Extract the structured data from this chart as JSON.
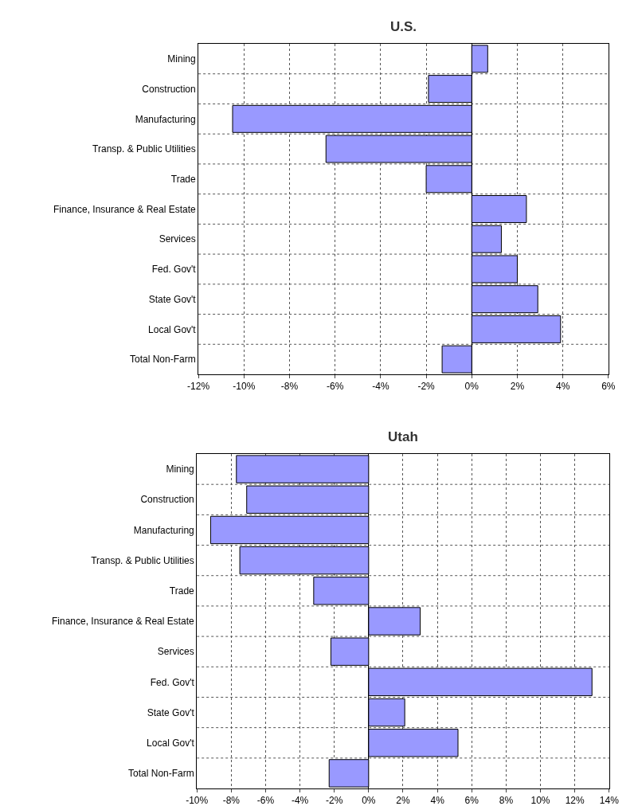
{
  "chart_data": [
    {
      "type": "bar",
      "orientation": "horizontal",
      "title": "U.S.",
      "color": "#9999ff",
      "grid": true,
      "categories": [
        "Mining",
        "Construction",
        "Manufacturing",
        "Transp. & Public Utilities",
        "Trade",
        "Finance, Insurance & Real Estate",
        "Services",
        "Fed. Gov't",
        "State Gov't",
        "Local Gov't",
        "Total Non-Farm"
      ],
      "values": [
        0.7,
        -1.9,
        -10.5,
        -6.4,
        -2.0,
        2.4,
        1.3,
        2.0,
        2.9,
        3.9,
        -1.3
      ],
      "xlim": [
        -12,
        6
      ],
      "xticks": [
        {
          "value": -12,
          "label": "-12%"
        },
        {
          "value": -10,
          "label": "-10%"
        },
        {
          "value": -8,
          "label": "-8%"
        },
        {
          "value": -6,
          "label": "-6%"
        },
        {
          "value": -4,
          "label": "-4%"
        },
        {
          "value": -2,
          "label": "-2%"
        },
        {
          "value": 0,
          "label": "0%"
        },
        {
          "value": 2,
          "label": "2%"
        },
        {
          "value": 4,
          "label": "4%"
        },
        {
          "value": 6,
          "label": "6%"
        }
      ]
    },
    {
      "type": "bar",
      "orientation": "horizontal",
      "title": "Utah",
      "color": "#9999ff",
      "grid": true,
      "categories": [
        "Mining",
        "Construction",
        "Manufacturing",
        "Transp. & Public Utilities",
        "Trade",
        "Finance, Insurance & Real Estate",
        "Services",
        "Fed. Gov't",
        "State Gov't",
        "Local Gov't",
        "Total Non-Farm"
      ],
      "values": [
        -7.7,
        -7.1,
        -9.2,
        -7.5,
        -3.2,
        3.0,
        -2.2,
        13.0,
        2.1,
        5.2,
        -2.3
      ],
      "xlim": [
        -10,
        14
      ],
      "xticks": [
        {
          "value": -10,
          "label": "-10%"
        },
        {
          "value": -8,
          "label": "-8%"
        },
        {
          "value": -6,
          "label": "-6%"
        },
        {
          "value": -4,
          "label": "-4%"
        },
        {
          "value": -2,
          "label": "-2%"
        },
        {
          "value": 0,
          "label": "0%"
        },
        {
          "value": 2,
          "label": "2%"
        },
        {
          "value": 4,
          "label": "4%"
        },
        {
          "value": 6,
          "label": "6%"
        },
        {
          "value": 8,
          "label": "8%"
        },
        {
          "value": 10,
          "label": "10%"
        },
        {
          "value": 12,
          "label": "12%"
        },
        {
          "value": 14,
          "label": "14%"
        }
      ]
    }
  ]
}
